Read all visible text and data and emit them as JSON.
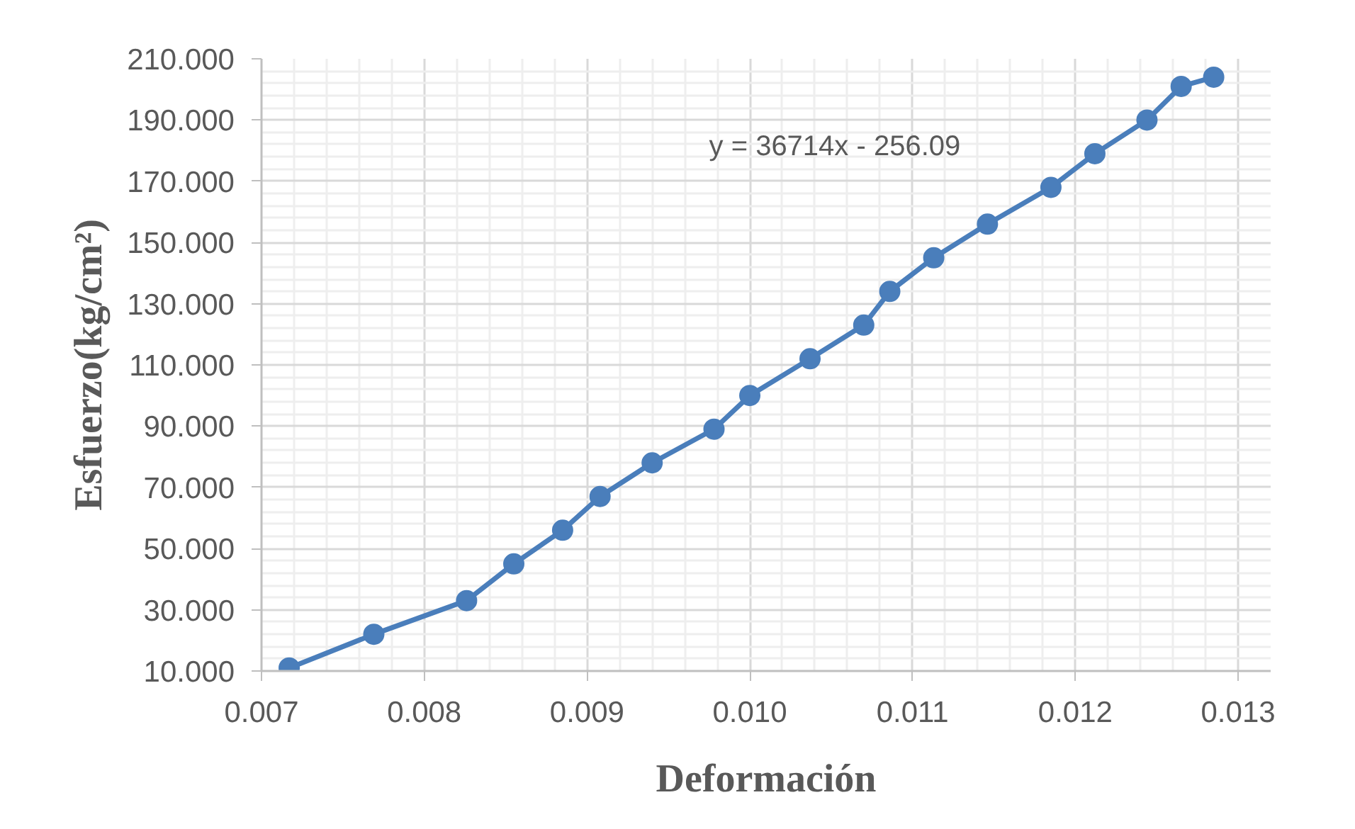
{
  "chart_data": {
    "type": "line",
    "xlabel": "Deformación",
    "ylabel": "Esfuerzo(kg/cm²)",
    "annotations": [
      "y = 36714x - 256.09"
    ],
    "x": [
      0.00717,
      0.00769,
      0.00826,
      0.00855,
      0.00885,
      0.00908,
      0.0094,
      0.00978,
      0.01,
      0.01037,
      0.0107,
      0.01086,
      0.01113,
      0.01146,
      0.01185,
      0.01212,
      0.01244,
      0.01265,
      0.01285
    ],
    "series": [
      {
        "color": "#4a7ebb",
        "values": [
          11,
          22,
          33,
          45,
          56,
          67,
          78,
          89,
          100,
          112,
          123,
          134,
          145,
          156,
          168,
          179,
          190,
          201,
          204
        ]
      }
    ],
    "xlim": [
      0.007,
      0.0132
    ],
    "xticks": [
      0.007,
      0.008,
      0.009,
      {
        "value": 0.01,
        "label": "0.010"
      },
      0.011,
      0.012,
      0.013
    ],
    "ylim": [
      10,
      210
    ],
    "yticks": [
      {
        "value": 10,
        "label": "10.000"
      },
      {
        "value": 30,
        "label": "30.000"
      },
      {
        "value": 50,
        "label": "50.000"
      },
      {
        "value": 70,
        "label": "70.000"
      },
      {
        "value": 90,
        "label": "90.000"
      },
      {
        "value": 110,
        "label": "110.000"
      },
      {
        "value": 130,
        "label": "130.000"
      },
      {
        "value": 150,
        "label": "150.000"
      },
      {
        "value": 170,
        "label": "170.000"
      },
      {
        "value": 190,
        "label": "190.000"
      },
      {
        "value": 210,
        "label": "210.000"
      }
    ],
    "grid": true,
    "marker": "circle",
    "line_style": "solid"
  }
}
